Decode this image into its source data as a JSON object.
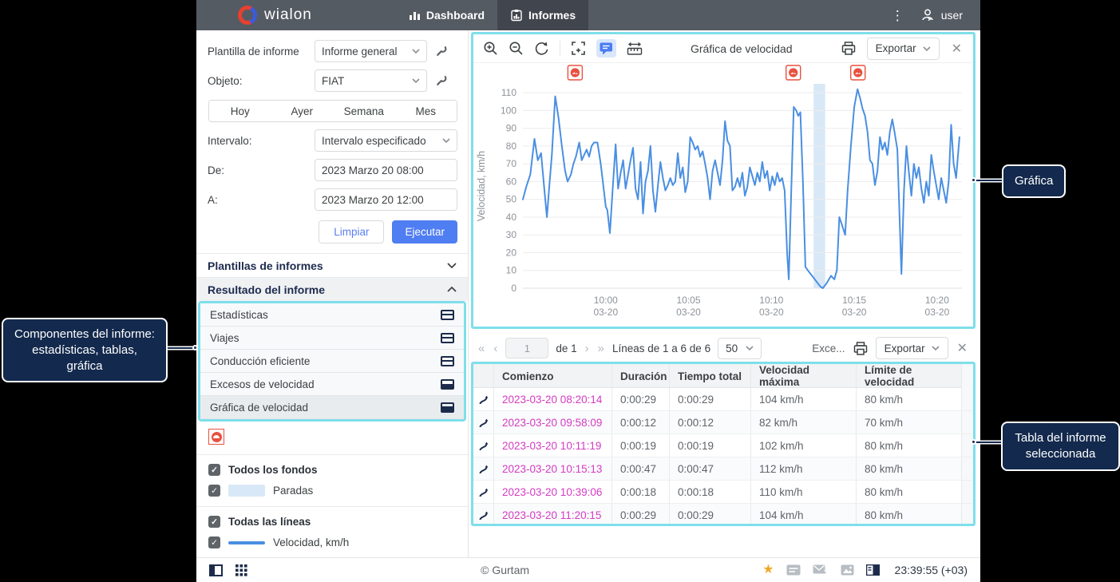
{
  "nav": {
    "brand": "wialon",
    "tabs": [
      {
        "label": "Dashboard"
      },
      {
        "label": "Informes",
        "active": true
      }
    ],
    "user": "user"
  },
  "sidebar": {
    "template_label": "Plantilla de informe",
    "template_value": "Informe general",
    "object_label": "Objeto:",
    "object_value": "FIAT",
    "quick_ranges": [
      "Hoy",
      "Ayer",
      "Semana",
      "Mes"
    ],
    "interval_label": "Intervalo:",
    "interval_value": "Intervalo especificado",
    "from_label": "De:",
    "from_value": "2023 Marzo 20 08:00",
    "to_label": "A:",
    "to_value": "2023 Marzo 20 12:00",
    "clear_label": "Limpiar",
    "execute_label": "Ejecutar",
    "sections": [
      {
        "label": "Plantillas de informes",
        "state": "collapsed"
      },
      {
        "label": "Resultado del informe",
        "state": "expanded"
      }
    ],
    "components": [
      {
        "label": "Estadísticas",
        "icon": "table"
      },
      {
        "label": "Viajes",
        "icon": "table"
      },
      {
        "label": "Conducción eficiente",
        "icon": "table"
      },
      {
        "label": "Excesos de velocidad",
        "icon": "table-filled"
      },
      {
        "label": "Gráfica de velocidad",
        "icon": "chart",
        "selected": true
      }
    ],
    "legend": {
      "backgrounds_label": "Todos los fondos",
      "background_items": [
        {
          "label": "Paradas",
          "swatch": "#d9e8f7"
        }
      ],
      "lines_label": "Todas las líneas",
      "line_items": [
        {
          "label": "Velocidad, km/h",
          "color": "#4a8fe2"
        }
      ]
    }
  },
  "chart_panel": {
    "title": "Gráfica de velocidad",
    "export_label": "Exportar"
  },
  "chart_data": {
    "type": "line",
    "title": "Gráfica de velocidad",
    "ylabel": "Velocidad, km/h",
    "ylim": [
      0,
      115
    ],
    "yticks": [
      0,
      10,
      20,
      30,
      40,
      50,
      60,
      70,
      80,
      90,
      100,
      110
    ],
    "x_unit": "minutes after 09:55 on 03-20",
    "xlim": [
      0,
      26.5
    ],
    "xticks": [
      {
        "t": 5,
        "time": "10:00",
        "date": "03-20"
      },
      {
        "t": 10,
        "time": "10:05",
        "date": "03-20"
      },
      {
        "t": 15,
        "time": "10:10",
        "date": "03-20"
      },
      {
        "t": 20,
        "time": "10:15",
        "date": "03-20"
      },
      {
        "t": 25,
        "time": "10:20",
        "date": "03-20"
      }
    ],
    "grid": true,
    "legend": false,
    "line_color": "#4a8fe2",
    "stop_bands": [
      {
        "from": 17.55,
        "to": 18.25,
        "color": "#d9e8f7",
        "label": "Paradas"
      }
    ],
    "violation_markers": [
      {
        "t": 3.15
      },
      {
        "t": 16.32
      },
      {
        "t": 20.22
      }
    ],
    "series": [
      {
        "name": "Velocidad, km/h",
        "color": "#4a8fe2",
        "points": [
          [
            0,
            50
          ],
          [
            0.2,
            57
          ],
          [
            0.45,
            64
          ],
          [
            0.7,
            84
          ],
          [
            0.9,
            72
          ],
          [
            1.1,
            76
          ],
          [
            1.3,
            55
          ],
          [
            1.45,
            40
          ],
          [
            1.6,
            58
          ],
          [
            1.75,
            75
          ],
          [
            1.95,
            108
          ],
          [
            2.15,
            96
          ],
          [
            2.35,
            80
          ],
          [
            2.55,
            66
          ],
          [
            2.7,
            60
          ],
          [
            2.9,
            64
          ],
          [
            3.05,
            70
          ],
          [
            3.2,
            74
          ],
          [
            3.4,
            82
          ],
          [
            3.55,
            72
          ],
          [
            3.7,
            75
          ],
          [
            3.85,
            78
          ],
          [
            4,
            74
          ],
          [
            4.15,
            80
          ],
          [
            4.3,
            82
          ],
          [
            4.5,
            82
          ],
          [
            4.7,
            70
          ],
          [
            4.85,
            58
          ],
          [
            5,
            46
          ],
          [
            5.1,
            44
          ],
          [
            5.25,
            31
          ],
          [
            5.45,
            60
          ],
          [
            5.6,
            81
          ],
          [
            5.75,
            56
          ],
          [
            5.9,
            65
          ],
          [
            6.05,
            72
          ],
          [
            6.2,
            56
          ],
          [
            6.35,
            64
          ],
          [
            6.5,
            72
          ],
          [
            6.65,
            79
          ],
          [
            6.8,
            56
          ],
          [
            6.95,
            50
          ],
          [
            7.1,
            71
          ],
          [
            7.25,
            42
          ],
          [
            7.4,
            60
          ],
          [
            7.55,
            66
          ],
          [
            7.7,
            80
          ],
          [
            7.85,
            55
          ],
          [
            8,
            43
          ],
          [
            8.15,
            58
          ],
          [
            8.3,
            71
          ],
          [
            8.45,
            62
          ],
          [
            8.6,
            55
          ],
          [
            8.75,
            58
          ],
          [
            8.9,
            62
          ],
          [
            9.05,
            58
          ],
          [
            9.2,
            60
          ],
          [
            9.35,
            76
          ],
          [
            9.5,
            62
          ],
          [
            9.65,
            68
          ],
          [
            9.8,
            54
          ],
          [
            9.95,
            60
          ],
          [
            10.1,
            85
          ],
          [
            10.25,
            82
          ],
          [
            10.4,
            78
          ],
          [
            10.55,
            80
          ],
          [
            10.7,
            74
          ],
          [
            10.85,
            77
          ],
          [
            11,
            70
          ],
          [
            11.15,
            62
          ],
          [
            11.3,
            50
          ],
          [
            11.45,
            66
          ],
          [
            11.6,
            72
          ],
          [
            11.75,
            65
          ],
          [
            11.9,
            58
          ],
          [
            12.05,
            72
          ],
          [
            12.2,
            94
          ],
          [
            12.35,
            83
          ],
          [
            12.5,
            80
          ],
          [
            12.65,
            55
          ],
          [
            12.8,
            57
          ],
          [
            12.95,
            62
          ],
          [
            13.1,
            57
          ],
          [
            13.25,
            65
          ],
          [
            13.4,
            52
          ],
          [
            13.55,
            57
          ],
          [
            13.7,
            68
          ],
          [
            13.85,
            63
          ],
          [
            14,
            58
          ],
          [
            14.15,
            65
          ],
          [
            14.3,
            60
          ],
          [
            14.45,
            71
          ],
          [
            14.6,
            62
          ],
          [
            14.75,
            66
          ],
          [
            14.9,
            55
          ],
          [
            15.05,
            63
          ],
          [
            15.2,
            58
          ],
          [
            15.35,
            65
          ],
          [
            15.5,
            60
          ],
          [
            15.65,
            62
          ],
          [
            15.8,
            55
          ],
          [
            15.95,
            20
          ],
          [
            16.05,
            5
          ],
          [
            16.2,
            55
          ],
          [
            16.35,
            102
          ],
          [
            16.5,
            100
          ],
          [
            16.62,
            97
          ],
          [
            16.75,
            99
          ],
          [
            16.9,
            60
          ],
          [
            17.05,
            12
          ],
          [
            17.2,
            10
          ],
          [
            17.45,
            7
          ],
          [
            17.7,
            4
          ],
          [
            17.95,
            1
          ],
          [
            18.1,
            0
          ],
          [
            18.35,
            3
          ],
          [
            18.6,
            7
          ],
          [
            18.8,
            5
          ],
          [
            18.95,
            10
          ],
          [
            19.1,
            40
          ],
          [
            19.25,
            36
          ],
          [
            19.45,
            30
          ],
          [
            19.6,
            55
          ],
          [
            19.8,
            80
          ],
          [
            20,
            102
          ],
          [
            20.2,
            112
          ],
          [
            20.35,
            107
          ],
          [
            20.5,
            101
          ],
          [
            20.65,
            97
          ],
          [
            20.8,
            88
          ],
          [
            20.95,
            72
          ],
          [
            21.1,
            70
          ],
          [
            21.25,
            58
          ],
          [
            21.4,
            66
          ],
          [
            21.55,
            85
          ],
          [
            21.7,
            78
          ],
          [
            21.85,
            82
          ],
          [
            22,
            75
          ],
          [
            22.15,
            88
          ],
          [
            22.3,
            95
          ],
          [
            22.45,
            87
          ],
          [
            22.6,
            78
          ],
          [
            22.85,
            8
          ],
          [
            23,
            55
          ],
          [
            23.15,
            80
          ],
          [
            23.3,
            65
          ],
          [
            23.45,
            52
          ],
          [
            23.6,
            70
          ],
          [
            23.75,
            62
          ],
          [
            23.9,
            68
          ],
          [
            24.05,
            56
          ],
          [
            24.2,
            48
          ],
          [
            24.35,
            60
          ],
          [
            24.5,
            52
          ],
          [
            24.65,
            75
          ],
          [
            24.8,
            66
          ],
          [
            24.95,
            58
          ],
          [
            25.1,
            50
          ],
          [
            25.25,
            62
          ],
          [
            25.4,
            55
          ],
          [
            25.55,
            48
          ],
          [
            25.7,
            60
          ],
          [
            25.85,
            92
          ],
          [
            26,
            70
          ],
          [
            26.15,
            62
          ],
          [
            26.35,
            85
          ]
        ]
      }
    ]
  },
  "table_panel": {
    "pagination": {
      "page": "1",
      "of_label": "de 1",
      "lines_label": "Líneas de 1 a 6 de 6",
      "page_size": "50",
      "tab_label": "Exce...",
      "export_label": "Exportar"
    },
    "columns": [
      "",
      "Comienzo",
      "Duración",
      "Tiempo total",
      "Velocidad máxima",
      "Límite de velocidad"
    ],
    "rows": [
      {
        "start": "2023-03-20 08:20:14",
        "duration": "0:00:29",
        "total_time": "0:00:29",
        "max_speed": "104 km/h",
        "speed_limit": "80 km/h"
      },
      {
        "start": "2023-03-20 09:58:09",
        "duration": "0:00:12",
        "total_time": "0:00:12",
        "max_speed": "82 km/h",
        "speed_limit": "70 km/h"
      },
      {
        "start": "2023-03-20 10:11:19",
        "duration": "0:00:19",
        "total_time": "0:00:19",
        "max_speed": "102 km/h",
        "speed_limit": "80 km/h"
      },
      {
        "start": "2023-03-20 10:15:13",
        "duration": "0:00:47",
        "total_time": "0:00:47",
        "max_speed": "112 km/h",
        "speed_limit": "80 km/h"
      },
      {
        "start": "2023-03-20 10:39:06",
        "duration": "0:00:18",
        "total_time": "0:00:18",
        "max_speed": "110 km/h",
        "speed_limit": "80 km/h"
      },
      {
        "start": "2023-03-20 11:20:15",
        "duration": "0:00:29",
        "total_time": "0:00:29",
        "max_speed": "104 km/h",
        "speed_limit": "80 km/h"
      }
    ]
  },
  "statusbar": {
    "copyright": "© Gurtam",
    "time": "23:39:55 (+03)"
  },
  "annotations": {
    "chart_label": "Gráfica",
    "components_label": "Componentes del informe: estadísticas, tablas, gráfica",
    "table_label": "Tabla del informe seleccionada"
  },
  "icons": {
    "kebab": "⋮",
    "close": "✕",
    "check": "✓",
    "star": "★",
    "first_page": "«",
    "prev_page": "‹",
    "next_page": "›",
    "last_page": "»"
  },
  "colors": {
    "accent_blue": "#4f7df2",
    "line_blue": "#4a8fe2",
    "link_magenta": "#d43bc2",
    "alert_red": "#e8513f",
    "annotation_cyan": "#7edfea",
    "callout_navy": "#13294d",
    "navbar_gray": "#555b63",
    "stops_band": "#d9e8f7"
  }
}
